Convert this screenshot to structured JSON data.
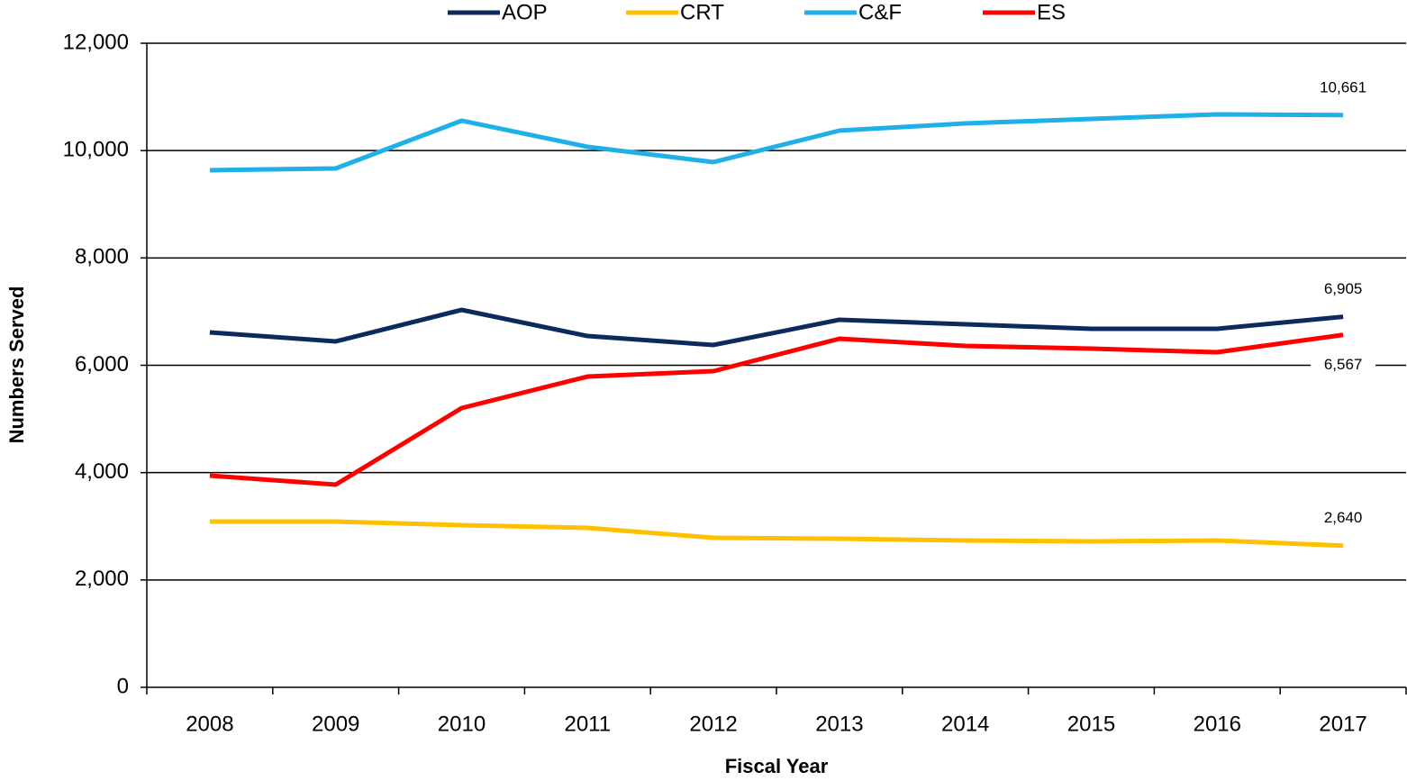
{
  "chart_data": {
    "type": "line",
    "x_label": "Fiscal Year",
    "y_label": "Numbers Served",
    "categories": [
      "2008",
      "2009",
      "2010",
      "2011",
      "2012",
      "2013",
      "2014",
      "2015",
      "2016",
      "2017"
    ],
    "series": [
      {
        "name": "AOP",
        "color": "#0d2a5e",
        "values": [
          6613,
          6445,
          7032,
          6545,
          6378,
          6848,
          6764,
          6680,
          6680,
          6905
        ],
        "value_labels": [
          null,
          null,
          null,
          null,
          null,
          null,
          null,
          null,
          null,
          "6,905"
        ]
      },
      {
        "name": "CRT",
        "color": "#ffc000",
        "values": [
          3088,
          3088,
          3021,
          2971,
          2786,
          2769,
          2736,
          2719,
          2736,
          2640
        ],
        "value_labels": [
          null,
          null,
          null,
          null,
          null,
          null,
          null,
          null,
          null,
          "2,640"
        ]
      },
      {
        "name": "C&F",
        "color": "#1fb0e8",
        "values": [
          9634,
          9667,
          10557,
          10070,
          9785,
          10372,
          10506,
          10590,
          10674,
          10661
        ],
        "value_labels": [
          null,
          null,
          null,
          null,
          null,
          null,
          null,
          null,
          null,
          "10,661"
        ]
      },
      {
        "name": "ES",
        "color": "#ff0000",
        "values": [
          3944,
          3776,
          5203,
          5790,
          5891,
          6495,
          6361,
          6310,
          6243,
          6567
        ],
        "value_labels": [
          null,
          null,
          null,
          null,
          null,
          null,
          null,
          null,
          null,
          "6,567"
        ]
      }
    ],
    "ylim": [
      0,
      12000
    ],
    "yticks": [
      0,
      {
        "value": 2000,
        "label": "2,000"
      },
      {
        "value": 4000,
        "label": "4,000"
      },
      {
        "value": 6000,
        "label": "6,000"
      },
      {
        "value": 8000,
        "label": "8,000"
      },
      {
        "value": 10000,
        "label": "10,000"
      },
      {
        "value": 12000,
        "label": "12,000"
      }
    ],
    "grid": true,
    "legend": "top"
  }
}
